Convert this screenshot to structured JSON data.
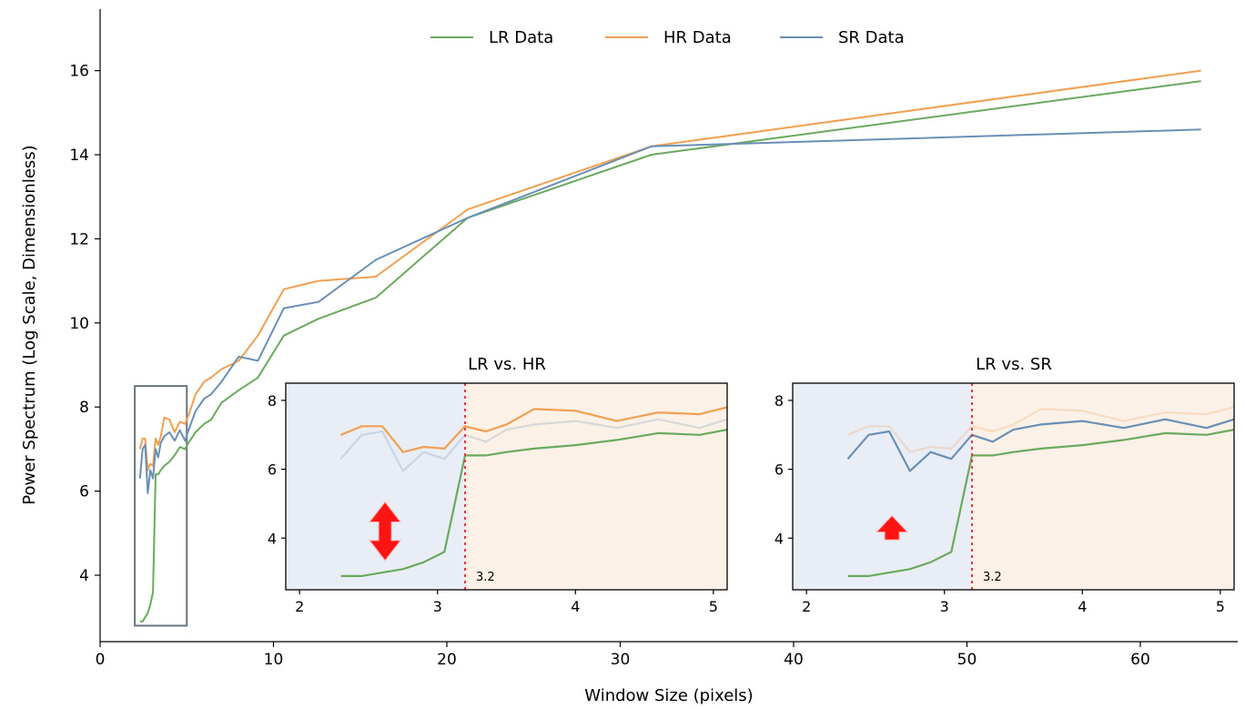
{
  "chart_data": {
    "type": "line",
    "xlabel": "Window Size (pixels)",
    "ylabel": "Power Spectrum (Log Scale, Dimensionless)",
    "xlim": [
      0,
      66
    ],
    "ylim": [
      2.6,
      17.5
    ],
    "xticks": [
      0,
      10,
      20,
      30,
      40,
      50,
      60
    ],
    "yticks": [
      4,
      6,
      8,
      10,
      12,
      14,
      16
    ],
    "legend_position": "top-center",
    "colors": {
      "LR": "#6aaa5e",
      "HR": "#f0a050",
      "SR": "#6a8fb5"
    },
    "series": [
      {
        "name": "LR Data",
        "x": [
          2.3,
          2.45,
          2.6,
          2.75,
          2.9,
          3.05,
          3.2,
          3.35,
          3.5,
          3.7,
          4.0,
          4.3,
          4.6,
          4.9,
          5.1,
          5.5,
          6.0,
          6.4,
          7.0,
          8.0,
          9.1,
          10.6,
          12.6,
          15.9,
          21.2,
          31.8,
          63.5
        ],
        "y": [
          2.9,
          2.9,
          3.0,
          3.1,
          3.3,
          3.6,
          6.4,
          6.4,
          6.5,
          6.6,
          6.7,
          6.85,
          7.05,
          7.0,
          7.15,
          7.4,
          7.6,
          7.7,
          8.1,
          8.4,
          8.7,
          9.7,
          10.1,
          10.6,
          12.5,
          14.0,
          15.75
        ]
      },
      {
        "name": "HR Data",
        "x": [
          2.3,
          2.45,
          2.6,
          2.75,
          2.9,
          3.05,
          3.2,
          3.35,
          3.5,
          3.7,
          4.0,
          4.3,
          4.6,
          4.9,
          5.1,
          5.5,
          6.0,
          6.4,
          7.0,
          8.0,
          9.1,
          10.6,
          12.6,
          15.9,
          21.2,
          31.8,
          63.5
        ],
        "y": [
          7.0,
          7.25,
          7.25,
          6.5,
          6.65,
          6.6,
          7.25,
          7.1,
          7.3,
          7.75,
          7.7,
          7.4,
          7.65,
          7.6,
          7.8,
          8.3,
          8.6,
          8.7,
          8.9,
          9.1,
          9.7,
          10.8,
          11.0,
          11.1,
          12.7,
          14.2,
          16.0
        ]
      },
      {
        "name": "SR Data",
        "x": [
          2.3,
          2.45,
          2.6,
          2.75,
          2.9,
          3.05,
          3.2,
          3.35,
          3.5,
          3.7,
          4.0,
          4.3,
          4.6,
          4.9,
          5.1,
          5.5,
          6.0,
          6.4,
          7.0,
          8.0,
          9.1,
          10.6,
          12.6,
          15.9,
          21.2,
          31.8,
          63.5
        ],
        "y": [
          6.3,
          7.0,
          7.1,
          5.95,
          6.5,
          6.3,
          7.0,
          6.8,
          7.15,
          7.3,
          7.4,
          7.2,
          7.45,
          7.2,
          7.45,
          7.9,
          8.2,
          8.3,
          8.6,
          9.2,
          9.1,
          10.35,
          10.5,
          11.5,
          12.5,
          14.2,
          14.6
        ]
      }
    ],
    "zoom_box": {
      "x": [
        2.0,
        5.0
      ],
      "y": [
        2.8,
        8.5
      ]
    },
    "insets": [
      {
        "title": "LR  vs.  HR",
        "xlim": [
          1.9,
          5.1
        ],
        "ylim": [
          2.5,
          8.5
        ],
        "xticks": [
          2,
          3,
          4,
          5
        ],
        "yticks": [
          4,
          6,
          8
        ],
        "threshold": 3.2,
        "threshold_label": "3.2",
        "highlight": "HR",
        "faded": "SR",
        "arrow": "double"
      },
      {
        "title": "LR  vs.  SR",
        "xlim": [
          1.9,
          5.1
        ],
        "ylim": [
          2.5,
          8.5
        ],
        "xticks": [
          2,
          3,
          4,
          5
        ],
        "yticks": [
          4,
          6,
          8
        ],
        "threshold": 3.2,
        "threshold_label": "3.2",
        "highlight": "SR",
        "faded": "HR",
        "arrow": "up"
      }
    ]
  }
}
